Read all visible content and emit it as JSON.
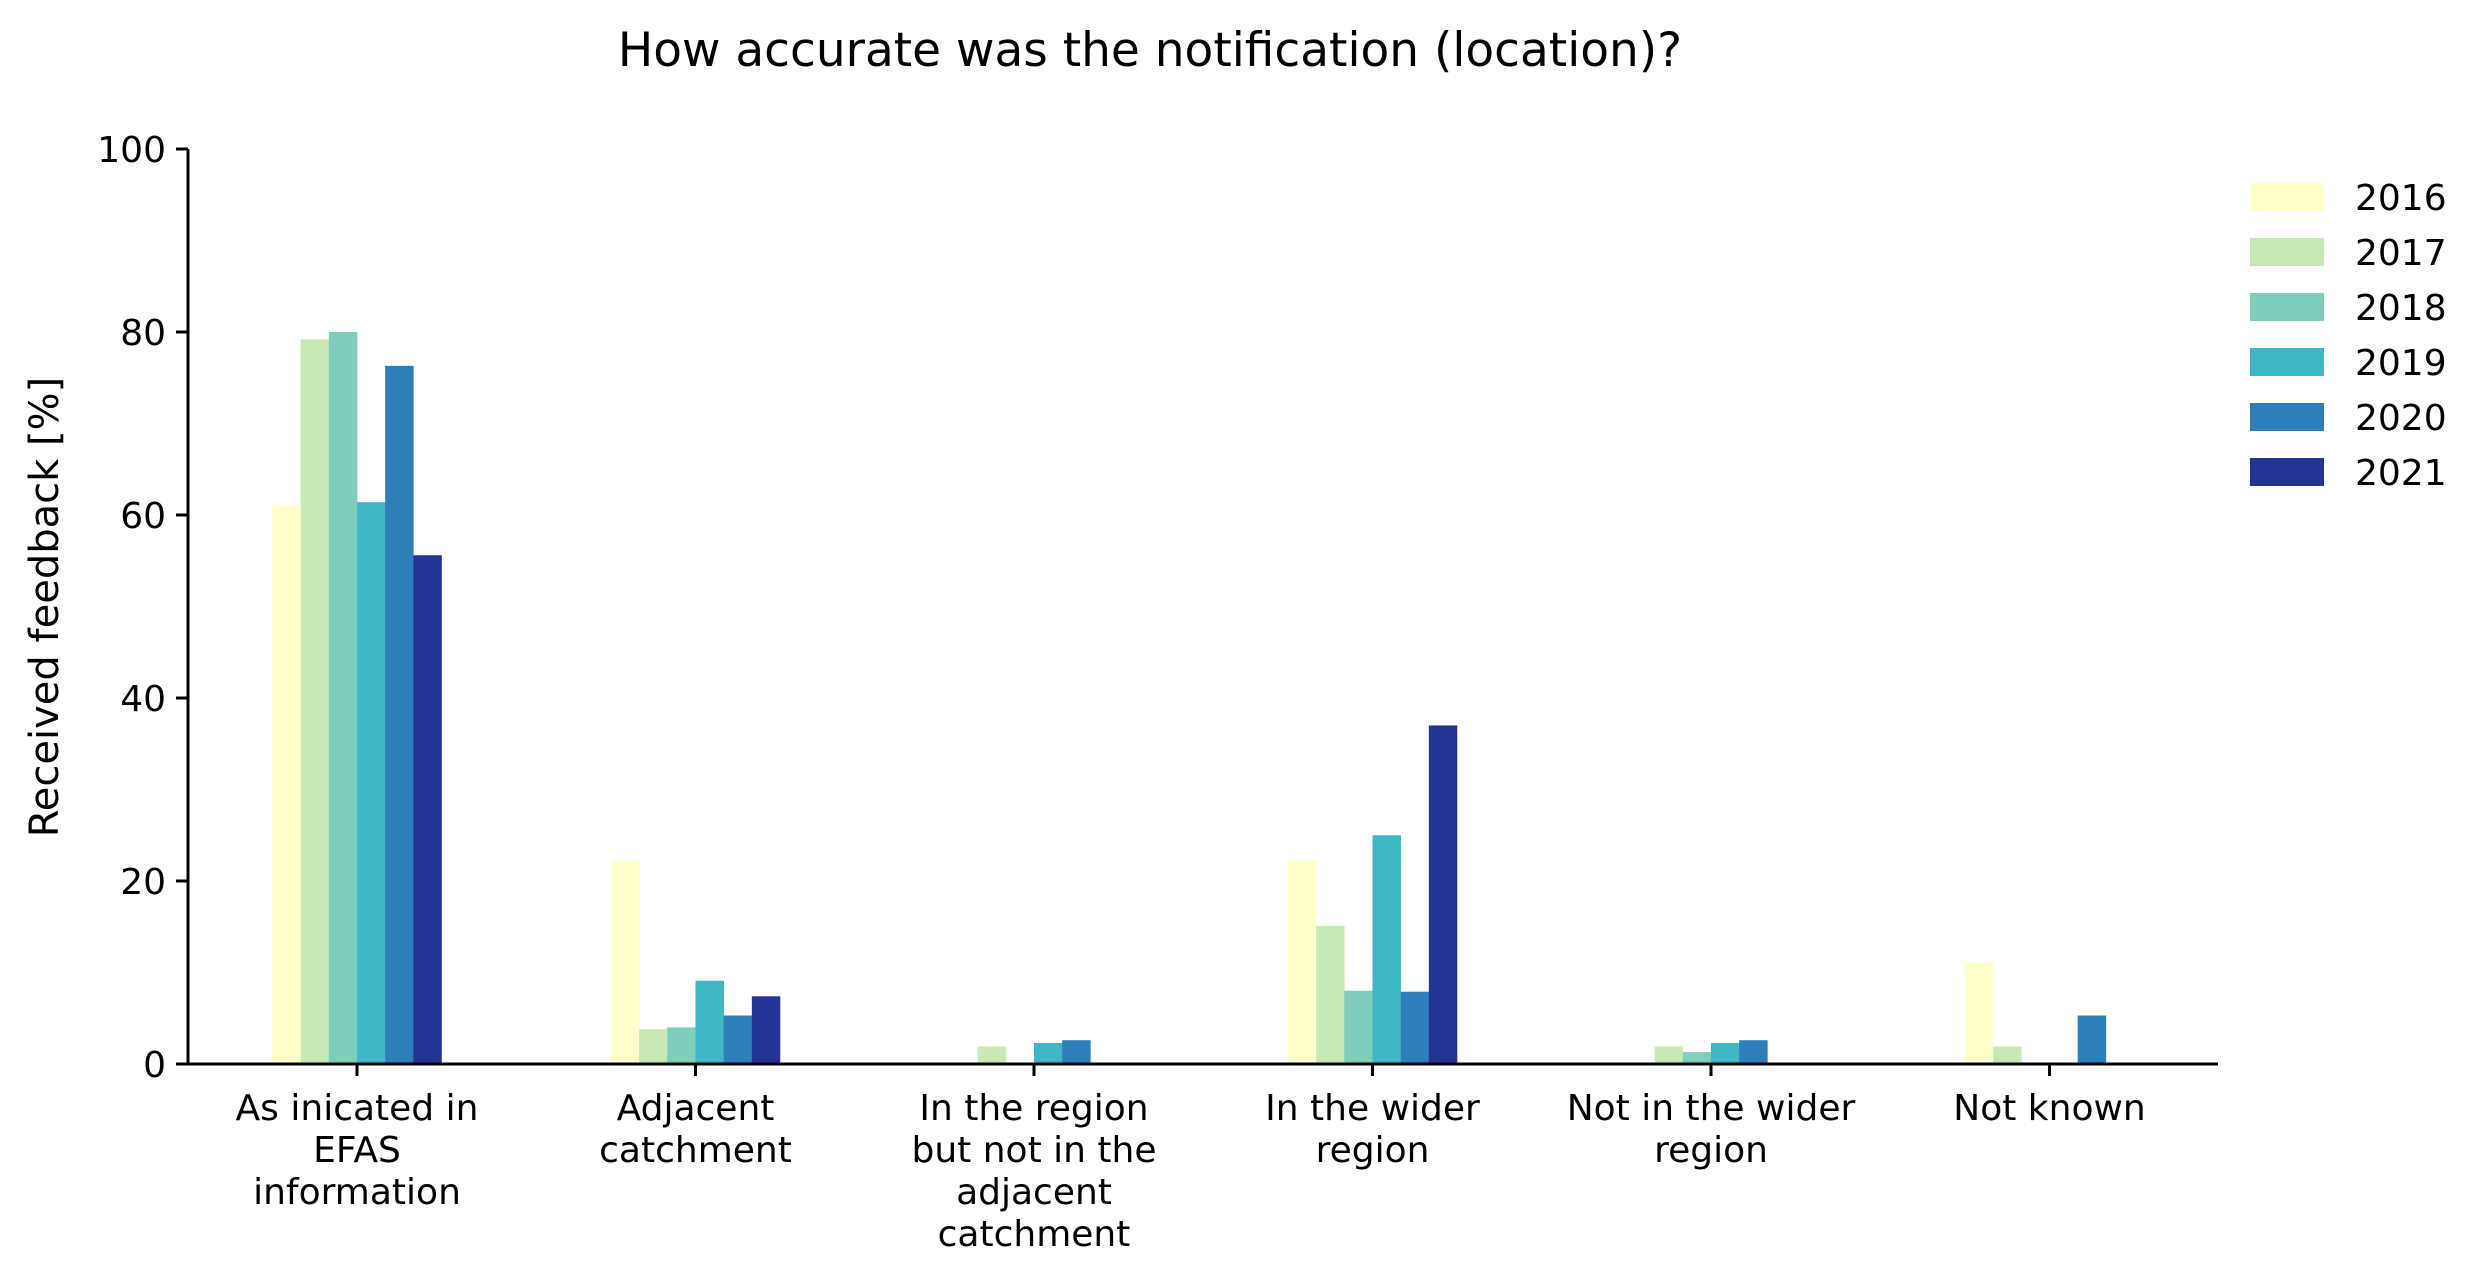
{
  "chart_data": {
    "type": "bar",
    "title": "How accurate was the notification (location)?",
    "xlabel": "",
    "ylabel": "Received feedback [%]",
    "ylim": [
      0,
      100
    ],
    "yticks": [
      0,
      20,
      40,
      60,
      80,
      100
    ],
    "grid": false,
    "legend_position": "top-right, outside plot",
    "categories": [
      "As inicated in EFAS information",
      "Adjacent catchment",
      "In the region but not in the adjacent catchment",
      "In the wider region",
      "Not in the wider region",
      "Not known"
    ],
    "category_lines": [
      [
        "As inicated in",
        "EFAS",
        "information"
      ],
      [
        "Adjacent",
        "catchment"
      ],
      [
        "In the region",
        "but not in the",
        "adjacent",
        "catchment"
      ],
      [
        "In the wider",
        "region"
      ],
      [
        "Not in the wider",
        "region"
      ],
      [
        "Not known"
      ]
    ],
    "series": [
      {
        "name": "2016",
        "color": "#ffffcc",
        "values": [
          61.1,
          22.2,
          0,
          22.2,
          0,
          11.1
        ]
      },
      {
        "name": "2017",
        "color": "#c7e9b4",
        "values": [
          79.2,
          3.8,
          1.9,
          15.1,
          1.9,
          1.9
        ]
      },
      {
        "name": "2018",
        "color": "#7fcdbb",
        "values": [
          80.0,
          4.0,
          0,
          8.0,
          1.3,
          0
        ]
      },
      {
        "name": "2019",
        "color": "#41b6c4",
        "values": [
          61.4,
          9.1,
          2.3,
          25.0,
          2.3,
          0
        ]
      },
      {
        "name": "2020",
        "color": "#2c7fb8",
        "values": [
          76.3,
          5.3,
          2.6,
          7.9,
          2.6,
          5.3
        ]
      },
      {
        "name": "2021",
        "color": "#253494",
        "values": [
          55.6,
          7.4,
          0,
          37.0,
          0,
          0
        ]
      }
    ]
  }
}
